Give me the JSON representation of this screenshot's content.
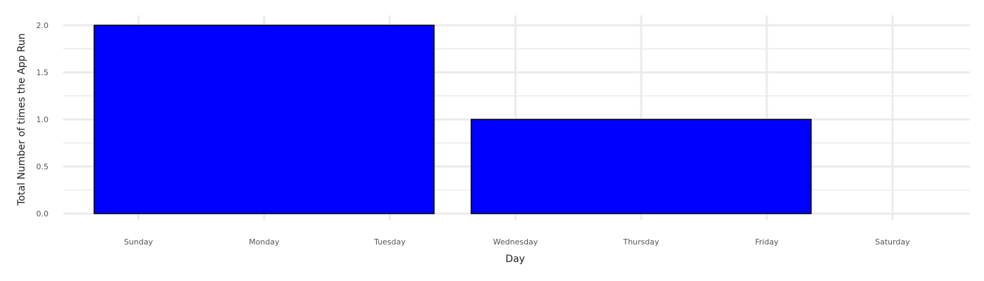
{
  "chart_data": {
    "type": "bar",
    "categories": [
      "Sunday",
      "Monday",
      "Tuesday",
      "Wednesday",
      "Thursday",
      "Friday",
      "Saturday"
    ],
    "bars": [
      {
        "x_start": "Sunday",
        "x_end": "Tuesday",
        "value": 2
      },
      {
        "x_start": "Wednesday",
        "x_end": "Friday",
        "value": 1
      }
    ],
    "xlabel": "Day",
    "ylabel": "Total Number of times the App Run",
    "ylim": [
      0,
      2
    ],
    "yticks": [
      "0.0",
      "0.5",
      "1.0",
      "1.5",
      "2.0"
    ],
    "bar_color": "#0000ff",
    "bar_outline_color": "#000000",
    "grid": true,
    "grid_color": "#ebebeb"
  }
}
